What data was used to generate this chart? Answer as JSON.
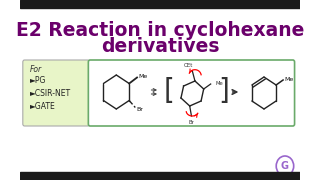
{
  "title_line1": "E2 Reaction in cyclohexane",
  "title_line2": "derivatives",
  "title_color": "#6B006B",
  "title_fontsize": 13.5,
  "bg_color": "#FFFFFF",
  "black_bar_color": "#1a1a1a",
  "for_box_color": "#e8f5c8",
  "for_box_border": "#aaaaaa",
  "for_text": "For",
  "for_items": [
    "►PG",
    "►CSIR-NET",
    "►GATE"
  ],
  "for_text_color": "#222222",
  "reaction_box_border": "#6aaa6a",
  "watermark_color": "#9966cc",
  "ring_color": "#222222"
}
